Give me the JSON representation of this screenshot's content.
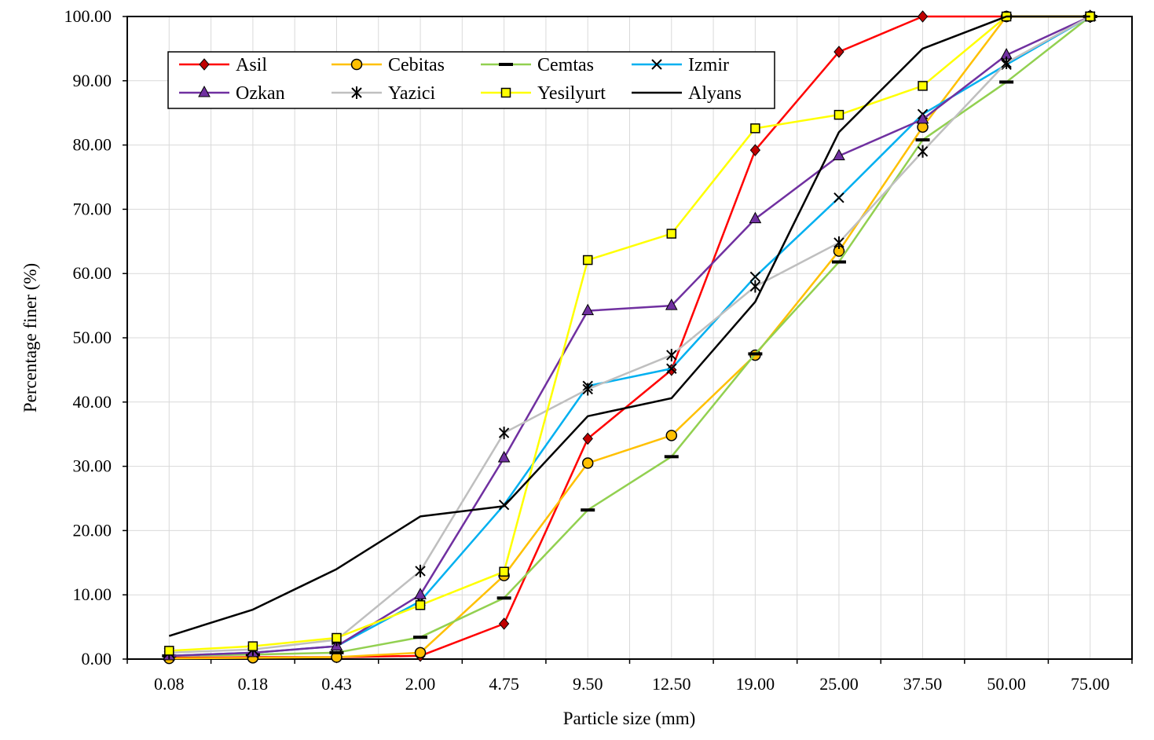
{
  "chart_data": {
    "type": "line",
    "title": "",
    "xlabel": "Particle size (mm)",
    "ylabel": "Percentage finer (%)",
    "categories": [
      "0.08",
      "0.18",
      "0.43",
      "2.00",
      "4.75",
      "9.50",
      "12.50",
      "19.00",
      "25.00",
      "37.50",
      "50.00",
      "75.00"
    ],
    "ylim": [
      0,
      100
    ],
    "yticks": [
      "0.00",
      "10.00",
      "20.00",
      "30.00",
      "40.00",
      "50.00",
      "60.00",
      "70.00",
      "80.00",
      "90.00",
      "100.00"
    ],
    "grid": true,
    "legend_position": "top-left inside",
    "series": [
      {
        "name": "Asil",
        "color": "#ff0000",
        "marker": "diamond",
        "marker_fill": "#c00000",
        "values": [
          0.2,
          0.3,
          0.3,
          0.5,
          5.5,
          34.3,
          45.0,
          79.2,
          94.5,
          100.0,
          100.0,
          100.0
        ]
      },
      {
        "name": "Cebitas",
        "color": "#ffc000",
        "marker": "circle",
        "marker_fill": "#ffc000",
        "values": [
          0.1,
          0.2,
          0.3,
          1.0,
          13.0,
          30.5,
          34.8,
          47.3,
          63.5,
          82.8,
          100.0,
          100.0
        ]
      },
      {
        "name": "Cemtas",
        "color": "#92d050",
        "marker": "dash",
        "marker_fill": "#000000",
        "values": [
          0.5,
          0.7,
          1.0,
          3.4,
          9.5,
          23.2,
          31.5,
          47.5,
          61.8,
          80.8,
          89.8,
          100.0
        ]
      },
      {
        "name": "Izmir",
        "color": "#00b0f0",
        "marker": "x",
        "marker_fill": "#000000",
        "values": [
          0.5,
          1.0,
          2.0,
          9.0,
          24.0,
          42.5,
          45.2,
          59.5,
          71.8,
          84.8,
          92.5,
          100.0
        ]
      },
      {
        "name": "Ozkan",
        "color": "#7030a0",
        "marker": "triangle",
        "marker_fill": "#7030a0",
        "values": [
          0.5,
          1.0,
          2.0,
          10.0,
          31.3,
          54.2,
          55.0,
          68.5,
          78.3,
          84.0,
          94.0,
          100.0
        ]
      },
      {
        "name": "Yazici",
        "color": "#bfbfbf",
        "marker": "star",
        "marker_fill": "#000000",
        "values": [
          1.0,
          1.5,
          3.0,
          13.7,
          35.2,
          42.0,
          47.3,
          58.0,
          64.8,
          79.0,
          92.8,
          100.0
        ]
      },
      {
        "name": "Yesilyurt",
        "color": "#ffff00",
        "marker": "square",
        "marker_fill": "#ffff00",
        "values": [
          1.3,
          2.0,
          3.3,
          8.4,
          13.6,
          62.1,
          66.2,
          82.6,
          84.7,
          89.2,
          100.0,
          100.0
        ]
      },
      {
        "name": "Alyans",
        "color": "#000000",
        "marker": "none",
        "marker_fill": "#000000",
        "values": [
          3.6,
          7.7,
          14.0,
          22.2,
          23.8,
          37.8,
          40.6,
          55.6,
          82.0,
          95.0,
          100.0,
          100.0
        ]
      }
    ]
  }
}
